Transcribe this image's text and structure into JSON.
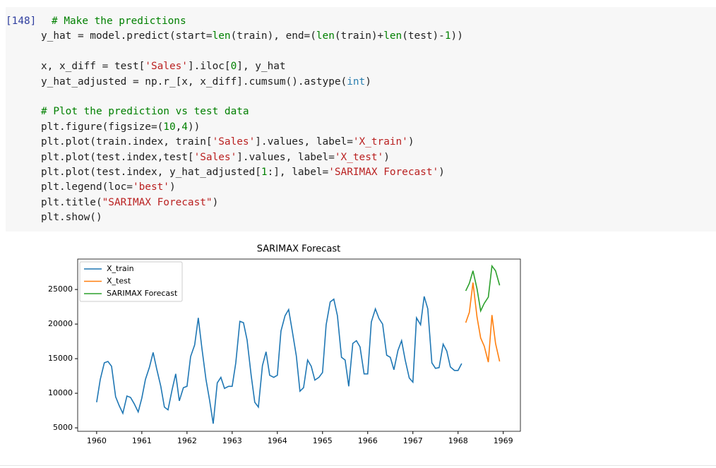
{
  "cell": {
    "prompt": "[148]",
    "lines": [
      [
        {
          "t": "# Make the predictions",
          "c": "#008000"
        }
      ],
      [
        {
          "t": "y_hat = model.predict(start="
        },
        {
          "t": "len",
          "c": "#008000"
        },
        {
          "t": "(train), end=("
        },
        {
          "t": "len",
          "c": "#008000"
        },
        {
          "t": "(train)+"
        },
        {
          "t": "len",
          "c": "#008000"
        },
        {
          "t": "(test)-"
        },
        {
          "t": "1",
          "c": "#008000"
        },
        {
          "t": "))"
        }
      ],
      [],
      [
        {
          "t": "x, x_diff = test["
        },
        {
          "t": "'Sales'",
          "c": "#ba2121"
        },
        {
          "t": "].iloc["
        },
        {
          "t": "0",
          "c": "#008000"
        },
        {
          "t": "], y_hat"
        }
      ],
      [
        {
          "t": "y_hat_adjusted = np.r_[x, x_diff].cumsum().astype("
        },
        {
          "t": "int",
          "c": "#2a7fb0"
        },
        {
          "t": ")"
        }
      ],
      [],
      [
        {
          "t": "# Plot the prediction vs test data",
          "c": "#008000"
        }
      ],
      [
        {
          "t": "plt.figure(figsize=("
        },
        {
          "t": "10",
          "c": "#008000"
        },
        {
          "t": ","
        },
        {
          "t": "4",
          "c": "#008000"
        },
        {
          "t": "))"
        }
      ],
      [
        {
          "t": "plt.plot(train.index, train["
        },
        {
          "t": "'Sales'",
          "c": "#ba2121"
        },
        {
          "t": "].values, label="
        },
        {
          "t": "'X_train'",
          "c": "#ba2121"
        },
        {
          "t": ")"
        }
      ],
      [
        {
          "t": "plt.plot(test.index,test["
        },
        {
          "t": "'Sales'",
          "c": "#ba2121"
        },
        {
          "t": "].values, label="
        },
        {
          "t": "'X_test'",
          "c": "#ba2121"
        },
        {
          "t": ")"
        }
      ],
      [
        {
          "t": "plt.plot(test.index, y_hat_adjusted["
        },
        {
          "t": "1",
          "c": "#008000"
        },
        {
          "t": ":], label="
        },
        {
          "t": "'SARIMAX Forecast'",
          "c": "#ba2121"
        },
        {
          "t": ")"
        }
      ],
      [
        {
          "t": "plt.legend(loc="
        },
        {
          "t": "'best'",
          "c": "#ba2121"
        },
        {
          "t": ")"
        }
      ],
      [
        {
          "t": "plt.title("
        },
        {
          "t": "\"SARIMAX Forecast\"",
          "c": "#ba2121"
        },
        {
          "t": ")"
        }
      ],
      [
        {
          "t": "plt.show()"
        }
      ]
    ]
  },
  "chart_data": {
    "type": "line",
    "title": "SARIMAX Forecast",
    "series": [
      {
        "name": "X_train",
        "color": "#1f77b4",
        "x": [
          1960,
          1960.08,
          1960.17,
          1960.25,
          1960.33,
          1960.42,
          1960.5,
          1960.58,
          1960.67,
          1960.75,
          1960.83,
          1960.92,
          1961,
          1961.08,
          1961.17,
          1961.25,
          1961.33,
          1961.42,
          1961.5,
          1961.58,
          1961.67,
          1961.75,
          1961.83,
          1961.92,
          1962,
          1962.08,
          1962.17,
          1962.25,
          1962.33,
          1962.42,
          1962.5,
          1962.58,
          1962.67,
          1962.75,
          1962.83,
          1962.92,
          1963,
          1963.08,
          1963.17,
          1963.25,
          1963.33,
          1963.42,
          1963.5,
          1963.58,
          1963.67,
          1963.75,
          1963.83,
          1963.92,
          1964,
          1964.08,
          1964.17,
          1964.25,
          1964.33,
          1964.42,
          1964.5,
          1964.58,
          1964.67,
          1964.75,
          1964.83,
          1964.92,
          1965,
          1965.08,
          1965.17,
          1965.25,
          1965.33,
          1965.42,
          1965.5,
          1965.58,
          1965.67,
          1965.75,
          1965.83,
          1965.92,
          1966,
          1966.08,
          1966.17,
          1966.25,
          1966.33,
          1966.42,
          1966.5,
          1966.58,
          1966.67,
          1966.75,
          1966.83,
          1966.92,
          1967,
          1967.08,
          1967.17,
          1967.25,
          1967.33,
          1967.42,
          1967.5,
          1967.58,
          1967.67,
          1967.75,
          1967.83,
          1967.92,
          1968,
          1968.08
        ],
        "values": [
          8700,
          12000,
          14400,
          14600,
          13900,
          9500,
          8200,
          7100,
          9600,
          9400,
          8500,
          7300,
          9300,
          12000,
          13800,
          15900,
          13500,
          11000,
          8000,
          7600,
          10500,
          12800,
          8900,
          10800,
          11000,
          15300,
          17000,
          20900,
          16500,
          12000,
          9000,
          5600,
          11500,
          12300,
          10700,
          11000,
          11000,
          14400,
          20400,
          20200,
          17700,
          12600,
          8700,
          8000,
          14000,
          16000,
          12600,
          12300,
          12600,
          19000,
          21200,
          22100,
          19000,
          15400,
          10300,
          10800,
          14800,
          13900,
          11900,
          12300,
          13000,
          19900,
          23200,
          23600,
          21200,
          15200,
          14800,
          11000,
          17200,
          17600,
          16700,
          12800,
          12800,
          20300,
          22200,
          20800,
          20000,
          15500,
          15200,
          13400,
          16200,
          17600,
          14800,
          12200,
          11600,
          20900,
          19900,
          24000,
          22200,
          14400,
          13600,
          13700,
          17100,
          16100,
          13800,
          13300,
          13300,
          14300
        ]
      },
      {
        "name": "X_test",
        "color": "#ff7f0e",
        "x": [
          1968.17,
          1968.25,
          1968.33,
          1968.42,
          1968.5,
          1968.58,
          1968.67,
          1968.75,
          1968.83,
          1968.92
        ],
        "values": [
          20200,
          21700,
          26000,
          21000,
          18000,
          16800,
          14500,
          21300,
          17200,
          14600
        ]
      },
      {
        "name": "SARIMAX Forecast",
        "color": "#2ca02c",
        "x": [
          1968.17,
          1968.25,
          1968.33,
          1968.42,
          1968.5,
          1968.58,
          1968.67,
          1968.75,
          1968.83,
          1968.92
        ],
        "values": [
          24800,
          25900,
          27700,
          25100,
          21900,
          23000,
          23900,
          28400,
          27700,
          25600
        ]
      }
    ],
    "xlim": [
      1959.58,
      1969.38
    ],
    "ylim": [
      4500,
      29400
    ],
    "xticks": [
      1960,
      1961,
      1962,
      1963,
      1964,
      1965,
      1966,
      1967,
      1968,
      1969
    ],
    "yticks": [
      5000,
      10000,
      15000,
      20000,
      25000
    ],
    "legend": "upper left"
  }
}
